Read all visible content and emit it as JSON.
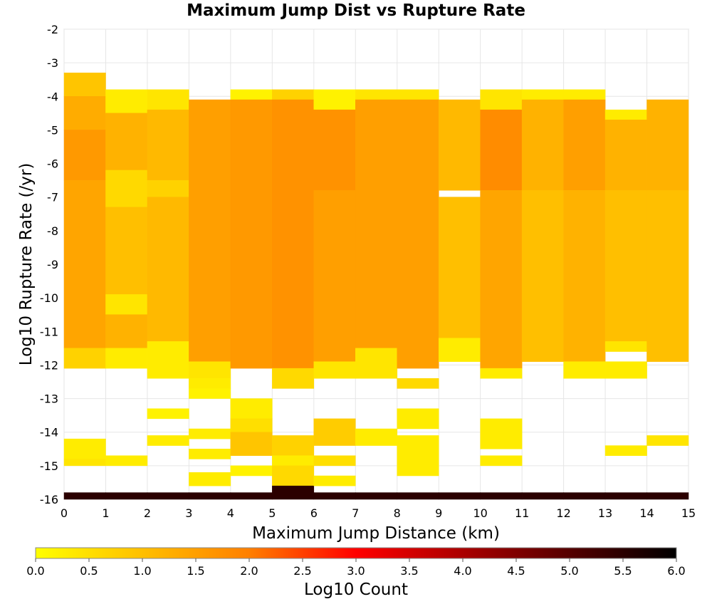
{
  "chart_data": {
    "type": "heatmap",
    "title": "Maximum Jump Dist vs Rupture Rate",
    "xlabel": "Maximum Jump Distance (km)",
    "ylabel": "Log10 Rupture Rate (/yr)",
    "xlim": [
      0,
      15
    ],
    "ylim": [
      -16,
      -2
    ],
    "x_ticks": [
      "0",
      "1",
      "2",
      "3",
      "4",
      "5",
      "6",
      "7",
      "8",
      "9",
      "10",
      "11",
      "12",
      "13",
      "14",
      "15"
    ],
    "y_ticks": [
      "-16",
      "-15",
      "-14",
      "-13",
      "-12",
      "-11",
      "-10",
      "-9",
      "-8",
      "-7",
      "-6",
      "-5",
      "-4",
      "-3",
      "-2"
    ],
    "x_bin_width": 1,
    "y_bin_height": 0.3,
    "grid": true,
    "colorscale": {
      "label": "Log10 Count",
      "min": 0,
      "max": 6,
      "ticks": [
        "0.0",
        "0.5",
        "1.0",
        "1.5",
        "2.0",
        "2.5",
        "3.0",
        "3.5",
        "4.0",
        "4.5",
        "5.0",
        "5.5",
        "6.0"
      ],
      "colors": [
        "#ffff00",
        "#ff7f00",
        "#ff0000",
        "#000000"
      ]
    },
    "columns": [
      {
        "x": 0.5,
        "segments": [
          {
            "y0": -4.0,
            "y1": -3.3,
            "v": 0.9
          },
          {
            "y0": -5.0,
            "y1": -4.0,
            "v": 1.3
          },
          {
            "y0": -6.5,
            "y1": -5.0,
            "v": 1.6
          },
          {
            "y0": -11.5,
            "y1": -6.5,
            "v": 1.4
          },
          {
            "y0": -12.1,
            "y1": -11.5,
            "v": 0.7
          },
          {
            "y0": -14.8,
            "y1": -14.2,
            "v": 0.3
          },
          {
            "y0": -15.0,
            "y1": -14.8,
            "v": 0.4
          },
          {
            "y0": -16.0,
            "y1": -15.8,
            "v": 5.5
          }
        ]
      },
      {
        "x": 1.5,
        "segments": [
          {
            "y0": -4.5,
            "y1": -3.8,
            "v": 0.3
          },
          {
            "y0": -6.2,
            "y1": -4.5,
            "v": 1.2
          },
          {
            "y0": -7.3,
            "y1": -6.2,
            "v": 0.6
          },
          {
            "y0": -9.9,
            "y1": -7.3,
            "v": 1.0
          },
          {
            "y0": -10.5,
            "y1": -9.9,
            "v": 0.4
          },
          {
            "y0": -11.5,
            "y1": -10.5,
            "v": 1.2
          },
          {
            "y0": -12.1,
            "y1": -11.5,
            "v": 0.3
          },
          {
            "y0": -15.0,
            "y1": -14.7,
            "v": 0.3
          },
          {
            "y0": -16.0,
            "y1": -15.8,
            "v": 5.5
          }
        ]
      },
      {
        "x": 2.5,
        "segments": [
          {
            "y0": -4.4,
            "y1": -3.8,
            "v": 0.4
          },
          {
            "y0": -6.5,
            "y1": -4.4,
            "v": 1.1
          },
          {
            "y0": -7.0,
            "y1": -6.5,
            "v": 0.7
          },
          {
            "y0": -11.3,
            "y1": -7.0,
            "v": 1.1
          },
          {
            "y0": -12.4,
            "y1": -11.3,
            "v": 0.3
          },
          {
            "y0": -13.6,
            "y1": -13.3,
            "v": 0.2
          },
          {
            "y0": -14.4,
            "y1": -14.1,
            "v": 0.3
          },
          {
            "y0": -16.0,
            "y1": -15.8,
            "v": 5.5
          }
        ]
      },
      {
        "x": 3.5,
        "segments": [
          {
            "y0": -11.9,
            "y1": -4.1,
            "v": 1.5
          },
          {
            "y0": -12.4,
            "y1": -11.9,
            "v": 0.4
          },
          {
            "y0": -12.7,
            "y1": -12.4,
            "v": 0.3
          },
          {
            "y0": -13.0,
            "y1": -12.7,
            "v": 0.2
          },
          {
            "y0": -14.2,
            "y1": -13.9,
            "v": 0.3
          },
          {
            "y0": -14.8,
            "y1": -14.5,
            "v": 0.3
          },
          {
            "y0": -15.6,
            "y1": -15.2,
            "v": 0.3
          },
          {
            "y0": -16.0,
            "y1": -15.8,
            "v": 5.5
          }
        ]
      },
      {
        "x": 4.5,
        "segments": [
          {
            "y0": -4.1,
            "y1": -3.8,
            "v": 0.2
          },
          {
            "y0": -12.1,
            "y1": -4.1,
            "v": 1.6
          },
          {
            "y0": -13.6,
            "y1": -13.0,
            "v": 0.3
          },
          {
            "y0": -14.0,
            "y1": -13.6,
            "v": 0.5
          },
          {
            "y0": -14.7,
            "y1": -14.0,
            "v": 0.9
          },
          {
            "y0": -15.3,
            "y1": -15.0,
            "v": 0.2
          },
          {
            "y0": -16.0,
            "y1": -15.8,
            "v": 5.5
          }
        ]
      },
      {
        "x": 5.5,
        "segments": [
          {
            "y0": -4.1,
            "y1": -3.8,
            "v": 0.7
          },
          {
            "y0": -12.1,
            "y1": -4.1,
            "v": 1.7
          },
          {
            "y0": -12.7,
            "y1": -12.1,
            "v": 0.6
          },
          {
            "y0": -14.7,
            "y1": -14.1,
            "v": 0.7
          },
          {
            "y0": -15.0,
            "y1": -14.7,
            "v": 0.3
          },
          {
            "y0": -15.6,
            "y1": -15.0,
            "v": 0.6
          },
          {
            "y0": -16.0,
            "y1": -15.6,
            "v": 5.5
          }
        ]
      },
      {
        "x": 6.5,
        "segments": [
          {
            "y0": -4.4,
            "y1": -3.8,
            "v": 0.2
          },
          {
            "y0": -6.8,
            "y1": -4.4,
            "v": 1.7
          },
          {
            "y0": -11.9,
            "y1": -6.8,
            "v": 1.5
          },
          {
            "y0": -12.4,
            "y1": -11.9,
            "v": 0.4
          },
          {
            "y0": -14.4,
            "y1": -13.6,
            "v": 0.8
          },
          {
            "y0": -15.0,
            "y1": -14.7,
            "v": 0.5
          },
          {
            "y0": -15.6,
            "y1": -15.3,
            "v": 0.3
          },
          {
            "y0": -16.0,
            "y1": -15.8,
            "v": 5.5
          }
        ]
      },
      {
        "x": 7.5,
        "segments": [
          {
            "y0": -4.1,
            "y1": -3.8,
            "v": 0.4
          },
          {
            "y0": -11.5,
            "y1": -4.1,
            "v": 1.5
          },
          {
            "y0": -12.4,
            "y1": -11.5,
            "v": 0.4
          },
          {
            "y0": -14.4,
            "y1": -13.9,
            "v": 0.3
          },
          {
            "y0": -16.0,
            "y1": -15.8,
            "v": 5.5
          }
        ]
      },
      {
        "x": 8.5,
        "segments": [
          {
            "y0": -4.1,
            "y1": -3.8,
            "v": 0.4
          },
          {
            "y0": -12.1,
            "y1": -4.1,
            "v": 1.5
          },
          {
            "y0": -12.7,
            "y1": -12.4,
            "v": 0.6
          },
          {
            "y0": -13.9,
            "y1": -13.3,
            "v": 0.3
          },
          {
            "y0": -15.3,
            "y1": -14.1,
            "v": 0.3
          },
          {
            "y0": -16.0,
            "y1": -15.8,
            "v": 5.5
          }
        ]
      },
      {
        "x": 9.5,
        "segments": [
          {
            "y0": -6.8,
            "y1": -4.1,
            "v": 1.1
          },
          {
            "y0": -11.2,
            "y1": -7.0,
            "v": 1.0
          },
          {
            "y0": -11.9,
            "y1": -11.2,
            "v": 0.3
          },
          {
            "y0": -16.0,
            "y1": -15.8,
            "v": 5.5
          }
        ]
      },
      {
        "x": 10.5,
        "segments": [
          {
            "y0": -4.4,
            "y1": -3.8,
            "v": 0.4
          },
          {
            "y0": -6.8,
            "y1": -4.4,
            "v": 1.8
          },
          {
            "y0": -12.1,
            "y1": -6.8,
            "v": 1.4
          },
          {
            "y0": -12.4,
            "y1": -12.1,
            "v": 0.3
          },
          {
            "y0": -14.5,
            "y1": -13.6,
            "v": 0.3
          },
          {
            "y0": -15.0,
            "y1": -14.7,
            "v": 0.3
          },
          {
            "y0": -16.0,
            "y1": -15.8,
            "v": 5.5
          }
        ]
      },
      {
        "x": 11.5,
        "segments": [
          {
            "y0": -4.1,
            "y1": -3.8,
            "v": 0.3
          },
          {
            "y0": -6.8,
            "y1": -4.1,
            "v": 1.2
          },
          {
            "y0": -11.9,
            "y1": -6.8,
            "v": 1.0
          },
          {
            "y0": -16.0,
            "y1": -15.8,
            "v": 5.5
          }
        ]
      },
      {
        "x": 12.5,
        "segments": [
          {
            "y0": -4.1,
            "y1": -3.8,
            "v": 0.3
          },
          {
            "y0": -6.8,
            "y1": -4.1,
            "v": 1.5
          },
          {
            "y0": -11.9,
            "y1": -6.8,
            "v": 1.2
          },
          {
            "y0": -12.4,
            "y1": -11.9,
            "v": 0.3
          },
          {
            "y0": -16.0,
            "y1": -15.8,
            "v": 5.5
          }
        ]
      },
      {
        "x": 13.5,
        "segments": [
          {
            "y0": -4.7,
            "y1": -4.4,
            "v": 0.3
          },
          {
            "y0": -6.8,
            "y1": -4.7,
            "v": 1.2
          },
          {
            "y0": -11.3,
            "y1": -6.8,
            "v": 1.0
          },
          {
            "y0": -11.6,
            "y1": -11.3,
            "v": 0.4
          },
          {
            "y0": -12.1,
            "y1": -11.9,
            "v": 0.3
          },
          {
            "y0": -12.4,
            "y1": -12.1,
            "v": 0.3
          },
          {
            "y0": -14.7,
            "y1": -14.4,
            "v": 0.3
          },
          {
            "y0": -16.0,
            "y1": -15.8,
            "v": 5.5
          }
        ]
      },
      {
        "x": 14.5,
        "segments": [
          {
            "y0": -6.8,
            "y1": -4.1,
            "v": 1.2
          },
          {
            "y0": -11.9,
            "y1": -6.8,
            "v": 1.0
          },
          {
            "y0": -14.4,
            "y1": -14.1,
            "v": 0.4
          },
          {
            "y0": -16.0,
            "y1": -15.8,
            "v": 5.5
          }
        ]
      }
    ]
  }
}
